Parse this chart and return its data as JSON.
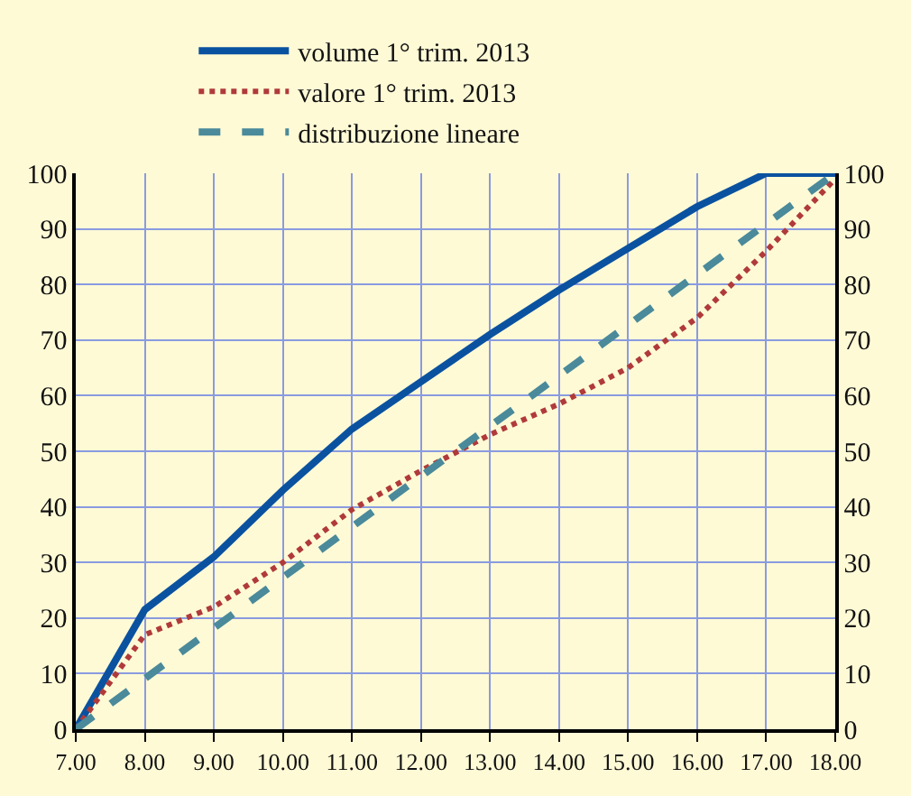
{
  "chart_data": {
    "type": "line",
    "x": [
      7,
      8,
      9,
      10,
      11,
      12,
      13,
      14,
      15,
      16,
      17,
      18
    ],
    "series": [
      {
        "name": "volume 1° trim. 2013",
        "color": "#0a52a0",
        "line_style": "solid",
        "values": [
          0,
          21.5,
          31,
          43,
          54,
          62.5,
          71,
          79,
          86.5,
          94,
          100,
          100
        ]
      },
      {
        "name": "valore 1° trim. 2013",
        "color": "#b03a3a",
        "line_style": "dotted",
        "values": [
          0,
          17,
          22,
          30,
          39.5,
          46.5,
          53,
          58.5,
          65,
          74,
          86,
          99
        ]
      },
      {
        "name": "distribuzione lineare",
        "color": "#4a8a9a",
        "line_style": "dashed",
        "values": [
          0,
          9.1,
          18.2,
          27.3,
          36.4,
          45.5,
          54.5,
          63.6,
          72.7,
          81.8,
          90.9,
          100
        ]
      }
    ],
    "xlim": [
      7,
      18
    ],
    "xticks": [
      {
        "value": 7,
        "label": "7.00"
      },
      {
        "value": 8,
        "label": "8.00"
      },
      {
        "value": 9,
        "label": "9.00"
      },
      {
        "value": 10,
        "label": "10.00"
      },
      {
        "value": 11,
        "label": "11.00"
      },
      {
        "value": 12,
        "label": "12.00"
      },
      {
        "value": 13,
        "label": "13.00"
      },
      {
        "value": 14,
        "label": "14.00"
      },
      {
        "value": 15,
        "label": "15.00"
      },
      {
        "value": 16,
        "label": "16.00"
      },
      {
        "value": 17,
        "label": "17.00"
      },
      {
        "value": 18,
        "label": "18.00"
      }
    ],
    "ylim": [
      0,
      100
    ],
    "yticks": [
      0,
      10,
      20,
      30,
      40,
      50,
      60,
      70,
      80,
      90,
      100
    ],
    "y2lim": [
      0,
      100
    ],
    "y2ticks": [
      0,
      10,
      20,
      30,
      40,
      50,
      60,
      70,
      80,
      90,
      100
    ],
    "grid": true,
    "legend": "top left",
    "marker": "none"
  }
}
